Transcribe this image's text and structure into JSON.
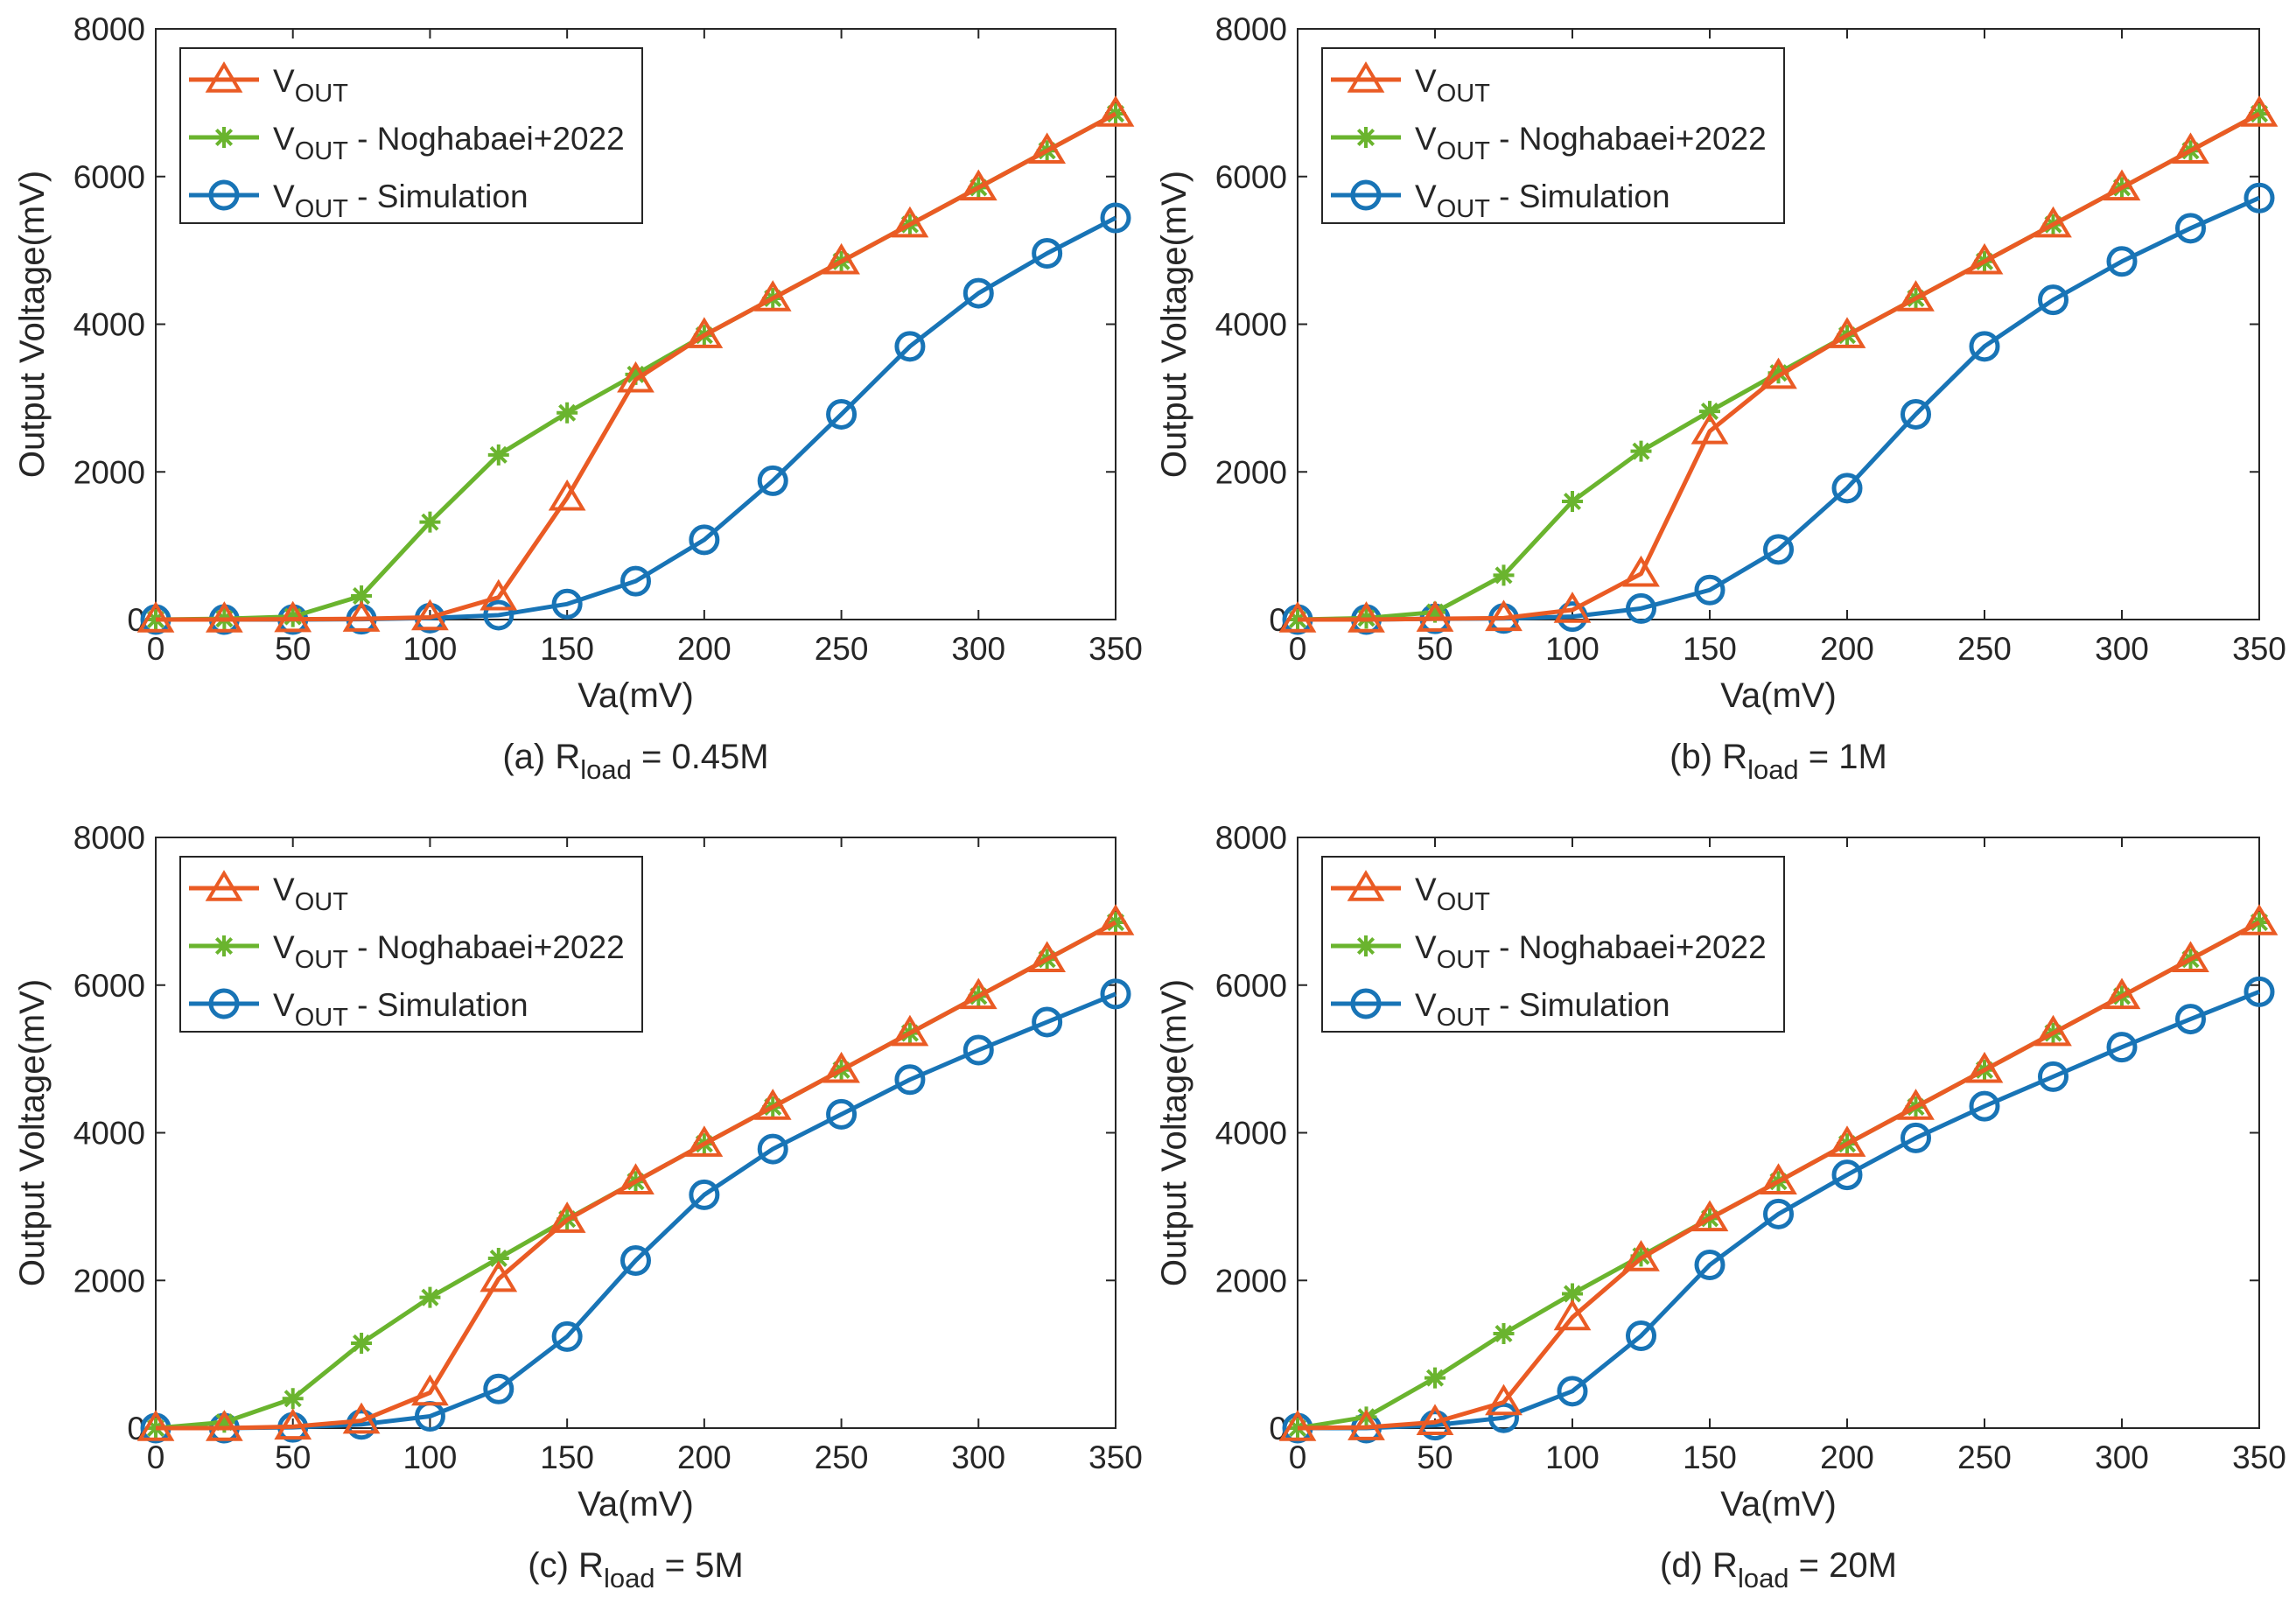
{
  "colors": {
    "vout": "#EA5B24",
    "noghabaei": "#6AB42E",
    "simulation": "#1874B6",
    "axis": "#262626"
  },
  "chart_data": [
    {
      "type": "line",
      "caption": {
        "prefix": "(a) R",
        "subscript": "load",
        "suffix": " = 0.45M"
      },
      "xlabel": "Va(mV)",
      "ylabel": "Output Voltage(mV)",
      "xlim": [
        0,
        350
      ],
      "ylim": [
        0,
        8000
      ],
      "xticks": [
        0,
        50,
        100,
        150,
        200,
        250,
        300,
        350
      ],
      "yticks": [
        0,
        2000,
        4000,
        6000,
        8000
      ],
      "legend_position": "top-left",
      "x": [
        0,
        25,
        50,
        75,
        100,
        125,
        150,
        175,
        200,
        225,
        250,
        275,
        300,
        325,
        350
      ],
      "series": [
        {
          "key": "vout",
          "name": "V",
          "subscript": "OUT",
          "suffix": "",
          "marker": "triangle",
          "values": [
            0,
            0,
            5,
            10,
            30,
            300,
            1650,
            3250,
            3850,
            4350,
            4850,
            5350,
            5850,
            6350,
            6850
          ]
        },
        {
          "key": "noghabaei",
          "name": "V",
          "subscript": "OUT",
          "suffix": " - Noghabaei+2022",
          "marker": "asterisk",
          "values": [
            0,
            10,
            40,
            320,
            1320,
            2230,
            2800,
            3320,
            3850,
            4350,
            4850,
            5350,
            5850,
            6350,
            6850
          ]
        },
        {
          "key": "simulation",
          "name": "V",
          "subscript": "OUT",
          "suffix": " - Simulation",
          "marker": "circle",
          "values": [
            0,
            0,
            0,
            5,
            20,
            60,
            210,
            520,
            1080,
            1880,
            2780,
            3700,
            4420,
            4960,
            5440
          ]
        }
      ]
    },
    {
      "type": "line",
      "caption": {
        "prefix": "(b) R",
        "subscript": "load",
        "suffix": " = 1M"
      },
      "xlabel": "Va(mV)",
      "ylabel": "Output Voltage(mV)",
      "xlim": [
        0,
        350
      ],
      "ylim": [
        0,
        8000
      ],
      "xticks": [
        0,
        50,
        100,
        150,
        200,
        250,
        300,
        350
      ],
      "yticks": [
        0,
        2000,
        4000,
        6000,
        8000
      ],
      "legend_position": "top-left",
      "x": [
        0,
        25,
        50,
        75,
        100,
        125,
        150,
        175,
        200,
        225,
        250,
        275,
        300,
        325,
        350
      ],
      "series": [
        {
          "key": "vout",
          "name": "V",
          "subscript": "OUT",
          "suffix": "",
          "marker": "triangle",
          "values": [
            0,
            0,
            10,
            20,
            130,
            620,
            2550,
            3300,
            3850,
            4350,
            4850,
            5350,
            5850,
            6350,
            6850
          ]
        },
        {
          "key": "noghabaei",
          "name": "V",
          "subscript": "OUT",
          "suffix": " - Noghabaei+2022",
          "marker": "asterisk",
          "values": [
            0,
            20,
            100,
            600,
            1600,
            2280,
            2820,
            3340,
            3850,
            4350,
            4850,
            5350,
            5850,
            6350,
            6850
          ]
        },
        {
          "key": "simulation",
          "name": "V",
          "subscript": "OUT",
          "suffix": " - Simulation",
          "marker": "circle",
          "values": [
            0,
            0,
            10,
            15,
            40,
            150,
            400,
            950,
            1780,
            2780,
            3700,
            4330,
            4850,
            5300,
            5710
          ]
        }
      ]
    },
    {
      "type": "line",
      "caption": {
        "prefix": "(c) R",
        "subscript": "load",
        "suffix": " = 5M"
      },
      "xlabel": "Va(mV)",
      "ylabel": "Output Voltage(mV)",
      "xlim": [
        0,
        350
      ],
      "ylim": [
        0,
        8000
      ],
      "xticks": [
        0,
        50,
        100,
        150,
        200,
        250,
        300,
        350
      ],
      "yticks": [
        0,
        2000,
        4000,
        6000,
        8000
      ],
      "legend_position": "top-left",
      "x": [
        0,
        25,
        50,
        75,
        100,
        125,
        150,
        175,
        200,
        225,
        250,
        275,
        300,
        325,
        350
      ],
      "series": [
        {
          "key": "vout",
          "name": "V",
          "subscript": "OUT",
          "suffix": "",
          "marker": "triangle",
          "values": [
            0,
            0,
            20,
            100,
            480,
            2020,
            2820,
            3340,
            3850,
            4350,
            4850,
            5350,
            5850,
            6350,
            6850
          ]
        },
        {
          "key": "noghabaei",
          "name": "V",
          "subscript": "OUT",
          "suffix": " - Noghabaei+2022",
          "marker": "asterisk",
          "values": [
            0,
            80,
            400,
            1150,
            1770,
            2300,
            2830,
            3340,
            3850,
            4350,
            4850,
            5350,
            5850,
            6350,
            6850
          ]
        },
        {
          "key": "simulation",
          "name": "V",
          "subscript": "OUT",
          "suffix": " - Simulation",
          "marker": "circle",
          "values": [
            0,
            0,
            10,
            50,
            160,
            530,
            1240,
            2270,
            3160,
            3780,
            4250,
            4720,
            5120,
            5500,
            5880
          ]
        }
      ]
    },
    {
      "type": "line",
      "caption": {
        "prefix": "(d) R",
        "subscript": "load",
        "suffix": " = 20M"
      },
      "xlabel": "Va(mV)",
      "ylabel": "Output Voltage(mV)",
      "xlim": [
        0,
        350
      ],
      "ylim": [
        0,
        8000
      ],
      "xticks": [
        0,
        50,
        100,
        150,
        200,
        250,
        300,
        350
      ],
      "yticks": [
        0,
        2000,
        4000,
        6000,
        8000
      ],
      "legend_position": "top-left",
      "x": [
        0,
        25,
        50,
        75,
        100,
        125,
        150,
        175,
        200,
        225,
        250,
        275,
        300,
        325,
        350
      ],
      "series": [
        {
          "key": "vout",
          "name": "V",
          "subscript": "OUT",
          "suffix": "",
          "marker": "triangle",
          "values": [
            0,
            10,
            80,
            350,
            1500,
            2300,
            2840,
            3340,
            3850,
            4350,
            4850,
            5350,
            5850,
            6350,
            6850
          ]
        },
        {
          "key": "noghabaei",
          "name": "V",
          "subscript": "OUT",
          "suffix": " - Noghabaei+2022",
          "marker": "asterisk",
          "values": [
            0,
            150,
            680,
            1280,
            1820,
            2330,
            2840,
            3340,
            3850,
            4350,
            4850,
            5350,
            5850,
            6350,
            6850
          ]
        },
        {
          "key": "simulation",
          "name": "V",
          "subscript": "OUT",
          "suffix": " - Simulation",
          "marker": "circle",
          "values": [
            0,
            0,
            40,
            140,
            500,
            1250,
            2210,
            2900,
            3430,
            3930,
            4360,
            4760,
            5160,
            5540,
            5910
          ]
        }
      ]
    }
  ]
}
